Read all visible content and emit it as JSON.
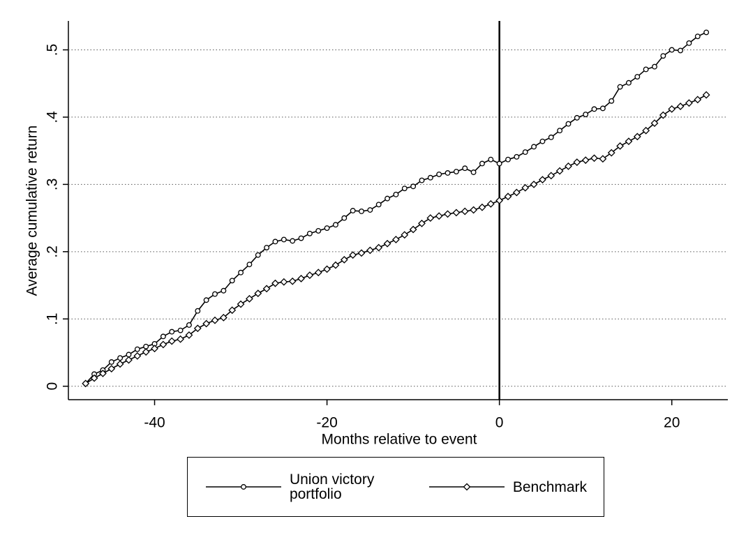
{
  "chart_data": {
    "type": "line",
    "xlabel": "Months relative to event",
    "ylabel": "Average cumulative return",
    "x": [
      -48,
      -47,
      -46,
      -45,
      -44,
      -43,
      -42,
      -41,
      -40,
      -39,
      -38,
      -37,
      -36,
      -35,
      -34,
      -33,
      -32,
      -31,
      -30,
      -29,
      -28,
      -27,
      -26,
      -25,
      -24,
      -23,
      -22,
      -21,
      -20,
      -19,
      -18,
      -17,
      -16,
      -15,
      -14,
      -13,
      -12,
      -11,
      -10,
      -9,
      -8,
      -7,
      -6,
      -5,
      -4,
      -3,
      -2,
      -1,
      0,
      1,
      2,
      3,
      4,
      5,
      6,
      7,
      8,
      9,
      10,
      11,
      12,
      13,
      14,
      15,
      16,
      17,
      18,
      19,
      20,
      21,
      22,
      23,
      24
    ],
    "series": [
      {
        "name": "Union victory portfolio",
        "color": "#000000",
        "marker": "circle",
        "values": [
          0.004,
          0.018,
          0.024,
          0.036,
          0.042,
          0.047,
          0.055,
          0.059,
          0.063,
          0.074,
          0.081,
          0.083,
          0.091,
          0.112,
          0.128,
          0.137,
          0.142,
          0.157,
          0.169,
          0.181,
          0.195,
          0.206,
          0.215,
          0.218,
          0.216,
          0.22,
          0.227,
          0.231,
          0.235,
          0.24,
          0.25,
          0.261,
          0.26,
          0.262,
          0.27,
          0.279,
          0.285,
          0.294,
          0.297,
          0.306,
          0.31,
          0.315,
          0.317,
          0.319,
          0.324,
          0.318,
          0.331,
          0.337,
          0.331,
          0.337,
          0.341,
          0.348,
          0.356,
          0.364,
          0.37,
          0.38,
          0.39,
          0.399,
          0.404,
          0.412,
          0.413,
          0.424,
          0.445,
          0.451,
          0.46,
          0.471,
          0.475,
          0.491,
          0.5,
          0.499,
          0.51,
          0.52,
          0.526
        ]
      },
      {
        "name": "Benchmark",
        "color": "#000000",
        "marker": "diamond",
        "values": [
          0.004,
          0.012,
          0.019,
          0.026,
          0.033,
          0.039,
          0.045,
          0.051,
          0.056,
          0.062,
          0.067,
          0.07,
          0.076,
          0.086,
          0.093,
          0.098,
          0.102,
          0.113,
          0.122,
          0.13,
          0.138,
          0.145,
          0.153,
          0.155,
          0.156,
          0.16,
          0.165,
          0.169,
          0.174,
          0.18,
          0.188,
          0.195,
          0.198,
          0.202,
          0.206,
          0.212,
          0.218,
          0.225,
          0.233,
          0.242,
          0.25,
          0.253,
          0.256,
          0.258,
          0.26,
          0.262,
          0.266,
          0.271,
          0.276,
          0.282,
          0.288,
          0.295,
          0.3,
          0.307,
          0.313,
          0.32,
          0.327,
          0.333,
          0.336,
          0.339,
          0.338,
          0.347,
          0.357,
          0.364,
          0.371,
          0.38,
          0.391,
          0.403,
          0.412,
          0.416,
          0.421,
          0.426,
          0.433
        ]
      }
    ],
    "xlim": [
      -50,
      26.5
    ],
    "ylim": [
      -0.02,
      0.543
    ],
    "xticks": [
      -40,
      -20,
      0,
      20
    ],
    "yticks": [
      0,
      {
        "value": 0.1,
        "label": ".1"
      },
      {
        "value": 0.2,
        "label": ".2"
      },
      {
        "value": 0.3,
        "label": ".3"
      },
      {
        "value": 0.4,
        "label": ".4"
      },
      {
        "value": 0.5,
        "label": ".5"
      }
    ],
    "grid": true,
    "xline": 0,
    "legend": "bottom"
  }
}
